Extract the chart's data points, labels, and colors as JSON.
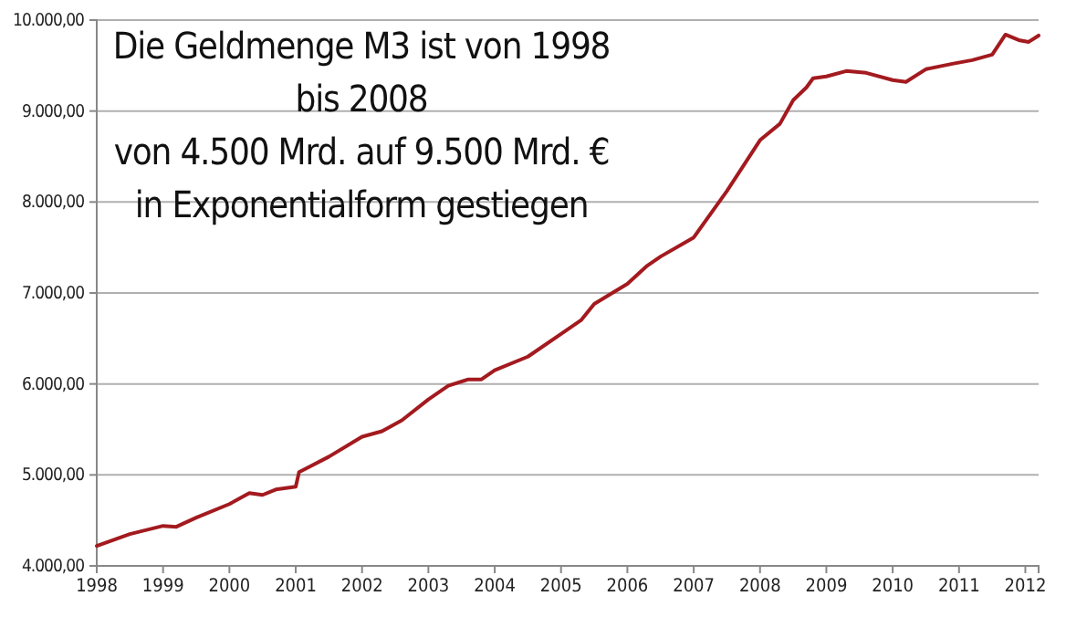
{
  "chart_data": {
    "type": "line",
    "annotations": [
      "Die Geldmenge M3 ist von 1998\nbis 2008\nvon 4.500 Mrd. auf 9.500 Mrd. €\nin Exponentialform gestiegen"
    ],
    "series": [
      {
        "color": "#a31a1f",
        "x": [
          1998.0,
          1998.5,
          1999.0,
          1999.2,
          1999.5,
          2000.0,
          2000.3,
          2000.5,
          2000.7,
          2001.0,
          2001.05,
          2001.5,
          2002.0,
          2002.3,
          2002.6,
          2003.0,
          2003.3,
          2003.6,
          2003.8,
          2004.0,
          2004.5,
          2005.0,
          2005.3,
          2005.5,
          2006.0,
          2006.3,
          2006.5,
          2007.0,
          2007.5,
          2008.0,
          2008.3,
          2008.5,
          2008.7,
          2008.8,
          2009.0,
          2009.3,
          2009.6,
          2010.0,
          2010.2,
          2010.5,
          2010.9,
          2011.2,
          2011.5,
          2011.7,
          2011.9,
          2012.05,
          2012.2
        ],
        "values": [
          4220,
          4350,
          4440,
          4430,
          4530,
          4680,
          4800,
          4780,
          4840,
          4870,
          5030,
          5200,
          5420,
          5480,
          5600,
          5830,
          5980,
          6050,
          6050,
          6150,
          6300,
          6550,
          6700,
          6880,
          7100,
          7300,
          7400,
          7610,
          8120,
          8680,
          8860,
          9120,
          9260,
          9360,
          9380,
          9440,
          9420,
          9340,
          9320,
          9460,
          9520,
          9560,
          9620,
          9840,
          9780,
          9760,
          9830
        ]
      }
    ],
    "xlim": [
      1998,
      2012.2
    ],
    "xticks": [
      1998,
      1999,
      2000,
      2001,
      2002,
      2003,
      2004,
      2005,
      2006,
      2007,
      2008,
      2009,
      2010,
      2011,
      2012
    ],
    "ylim": [
      4000,
      10000
    ],
    "yticks": [
      {
        "value": 4000,
        "label": "4.000,00"
      },
      {
        "value": 5000,
        "label": "5.000,00"
      },
      {
        "value": 6000,
        "label": "6.000,00"
      },
      {
        "value": 7000,
        "label": "7.000,00"
      },
      {
        "value": 8000,
        "label": "8.000,00"
      },
      {
        "value": 9000,
        "label": "9.000,00"
      },
      {
        "value": 10000,
        "label": "10.000,00"
      }
    ],
    "grid": "y",
    "marker": "none",
    "line_style": "solid"
  }
}
